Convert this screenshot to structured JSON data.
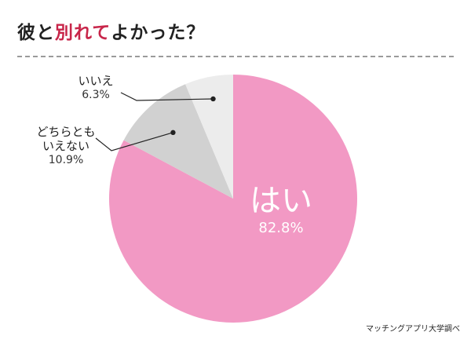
{
  "title": {
    "part1": "彼と",
    "highlight": "別れて",
    "part2": "よかった？"
  },
  "chart_data": {
    "type": "pie",
    "start_angle_deg": 0,
    "direction": "clockwise",
    "slices": [
      {
        "label": "はい",
        "label_lines": [
          "はい"
        ],
        "value": 82.8,
        "value_text": "82.8%",
        "color": "#f299c4"
      },
      {
        "label": "どちらともいえない",
        "label_lines": [
          "どちらとも",
          "いえない"
        ],
        "value": 10.9,
        "value_text": "10.9%",
        "color": "#d1d1d1"
      },
      {
        "label": "いいえ",
        "label_lines": [
          "いいえ"
        ],
        "value": 6.3,
        "value_text": "6.3%",
        "color": "#ececec"
      }
    ]
  },
  "source": "マッチングアプリ大学調べ",
  "colors": {
    "title_highlight": "#c8264a",
    "divider": "#9a9a9a",
    "leader": "#222222"
  }
}
